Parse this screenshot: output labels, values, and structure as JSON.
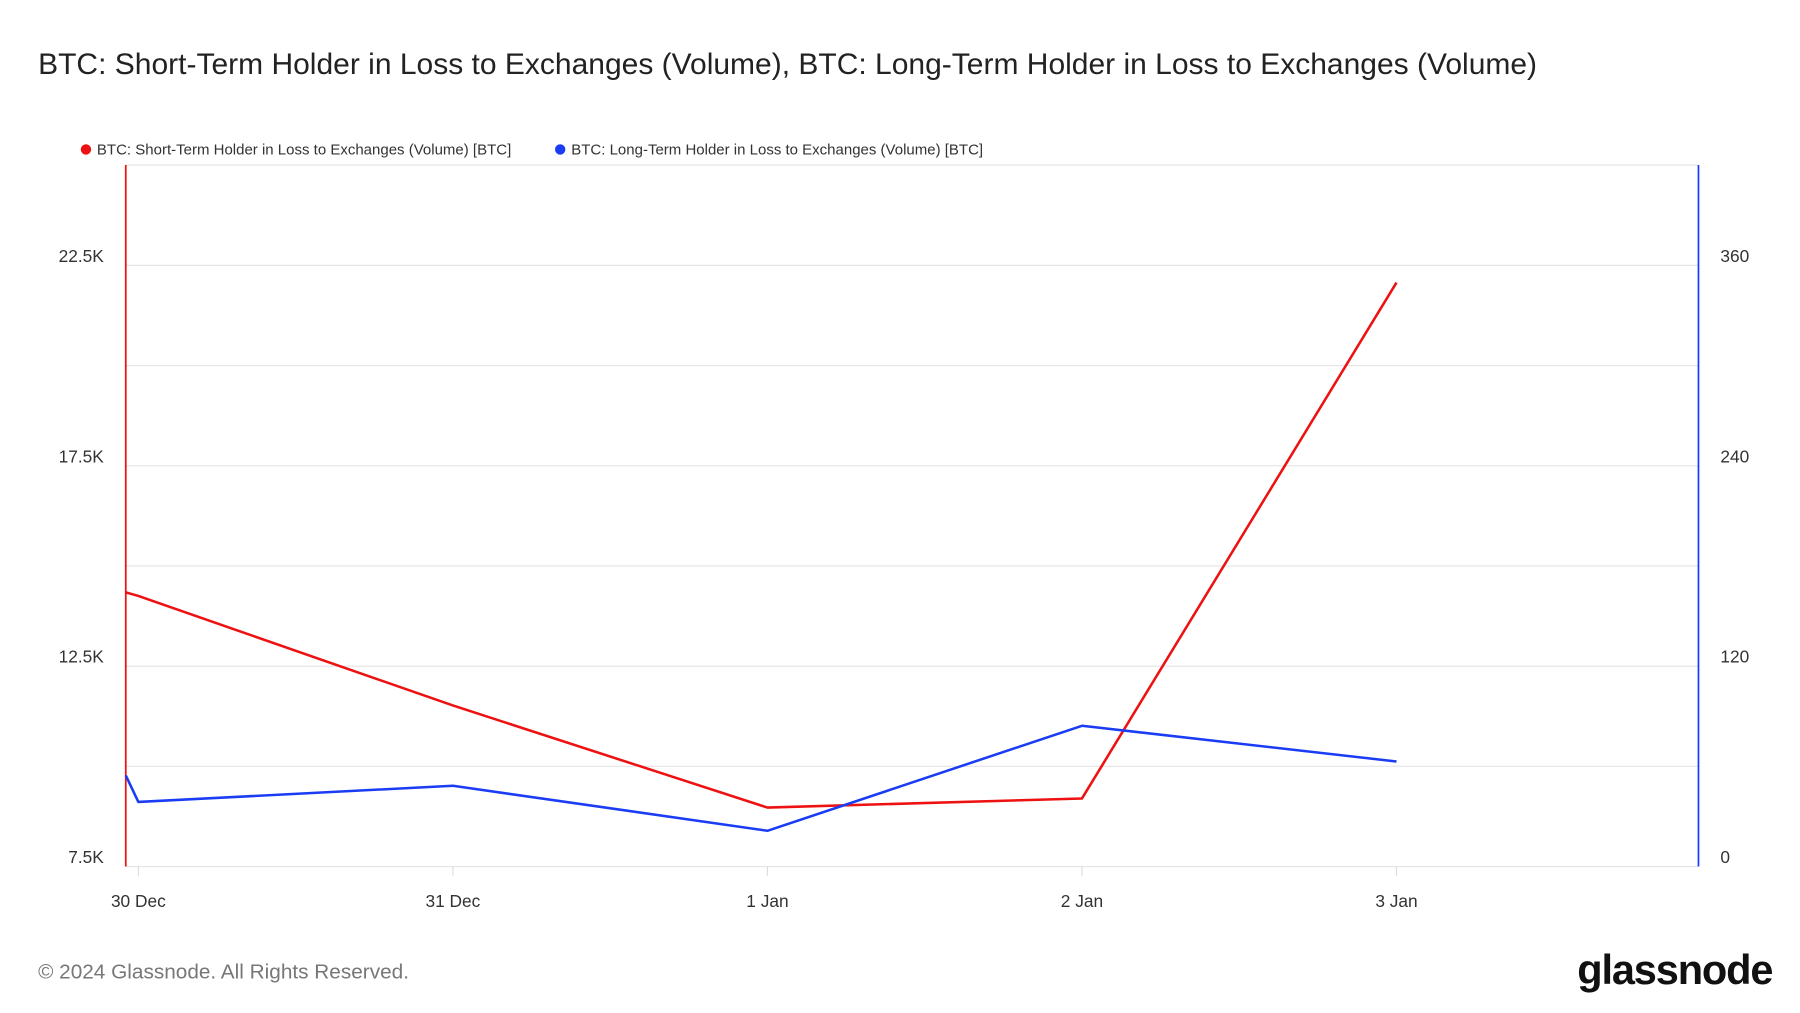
{
  "chart_data": {
    "type": "line",
    "title": "BTC: Short-Term Holder in Loss to Exchanges (Volume), BTC: Long-Term Holder in Loss to Exchanges (Volume)",
    "x_tick_labels": [
      "30 Dec",
      "31 Dec",
      "1 Jan",
      "2 Jan",
      "3 Jan"
    ],
    "x_ticks": [
      0,
      1,
      2,
      3,
      4
    ],
    "xlim": [
      -0.04,
      4.96
    ],
    "left_axis": {
      "ylim": [
        7500,
        25000
      ],
      "ticks": [
        7500,
        12500,
        17500,
        22500
      ],
      "tick_labels": [
        "7.5K",
        "12.5K",
        "17.5K",
        "22.5K"
      ],
      "gridlines": [
        7500,
        10000,
        12500,
        15000,
        17500,
        20000,
        22500
      ]
    },
    "right_axis": {
      "ylim": [
        0,
        420
      ],
      "ticks": [
        0,
        120,
        240,
        360
      ],
      "tick_labels": [
        "0",
        "120",
        "240",
        "360"
      ]
    },
    "legend_position": "top-left",
    "series": [
      {
        "name": "BTC: Short-Term Holder in Loss to Exchanges (Volume) [BTC]",
        "axis": "left",
        "color": "#ee1111",
        "x": [
          -0.04,
          0,
          1,
          2,
          3,
          4
        ],
        "values": [
          14340,
          14250,
          11520,
          8970,
          9200,
          22070
        ]
      },
      {
        "name": "BTC: Long-Term Holder in Loss to Exchanges (Volume) [BTC]",
        "axis": "right",
        "color": "#1a3cf5",
        "x": [
          -0.04,
          0,
          1,
          2,
          3,
          4
        ],
        "values": [
          54.6,
          38.7,
          48.4,
          21.4,
          84.3,
          62.9
        ]
      }
    ]
  },
  "footer": {
    "copyright": "© 2024 Glassnode. All Rights Reserved.",
    "logo": "glassnode"
  }
}
